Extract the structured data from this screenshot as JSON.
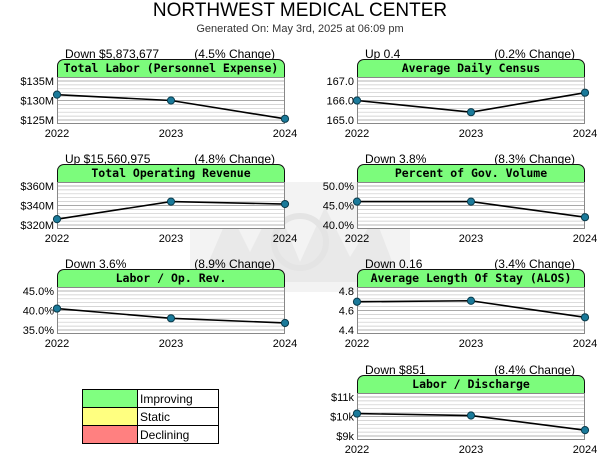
{
  "title": "NORTHWEST MEDICAL CENTER",
  "subtitle": "Generated On: May 3rd, 2025 at 06:09 pm",
  "legend": [
    {
      "label": "Improving",
      "color": "#80ff80"
    },
    {
      "label": "Static",
      "color": "#ffff80"
    },
    {
      "label": "Declining",
      "color": "#ff8080"
    }
  ],
  "colors": {
    "tab": "#7cfc7c",
    "line": "#000000",
    "marker": "#1a7a9a",
    "grid": "#c8c8c8"
  },
  "chart_data": [
    {
      "type": "line",
      "title": "Total Labor (Personnel Expense)",
      "change": "Down $5,873,677",
      "pct_change": "(4.5% Change)",
      "x": [
        "2022",
        "2023",
        "2024"
      ],
      "values": [
        131.5,
        130.0,
        125.3
      ],
      "ylim": [
        125,
        135
      ],
      "yticks": [
        125,
        130,
        135
      ],
      "ytick_labels": [
        "$125M",
        "$130M",
        "$135M"
      ]
    },
    {
      "type": "line",
      "title": "Average Daily Census",
      "change": "Up 0.4",
      "pct_change": "(0.2% Change)",
      "x": [
        "2022",
        "2023",
        "2024"
      ],
      "values": [
        166.0,
        165.4,
        166.4
      ],
      "ylim": [
        165,
        167
      ],
      "yticks": [
        165,
        166,
        167
      ],
      "ytick_labels": [
        "165.0",
        "166.0",
        "167.0"
      ]
    },
    {
      "type": "line",
      "title": "Total Operating Revenue",
      "change": "Up $15,560,975",
      "pct_change": "(4.8% Change)",
      "x": [
        "2022",
        "2023",
        "2024"
      ],
      "values": [
        326.0,
        344.0,
        341.5
      ],
      "ylim": [
        320,
        360
      ],
      "yticks": [
        320,
        340,
        360
      ],
      "ytick_labels": [
        "$320M",
        "$340M",
        "$360M"
      ]
    },
    {
      "type": "line",
      "title": "Percent of Gov. Volume",
      "change": "Down 3.8%",
      "pct_change": "(8.3% Change)",
      "x": [
        "2022",
        "2023",
        "2024"
      ],
      "values": [
        46.0,
        46.0,
        42.0
      ],
      "ylim": [
        40,
        50
      ],
      "yticks": [
        40,
        45,
        50
      ],
      "ytick_labels": [
        "40.0%",
        "45.0%",
        "50.0%"
      ]
    },
    {
      "type": "line",
      "title": "Labor / Op. Rev.",
      "change": "Down 3.6%",
      "pct_change": "(8.9% Change)",
      "x": [
        "2022",
        "2023",
        "2024"
      ],
      "values": [
        40.5,
        38.0,
        36.8
      ],
      "ylim": [
        35,
        45
      ],
      "yticks": [
        35,
        40,
        45
      ],
      "ytick_labels": [
        "35.0%",
        "40.0%",
        "45.0%"
      ]
    },
    {
      "type": "line",
      "title": "Average Length Of Stay (ALOS)",
      "change": "Down 0.16",
      "pct_change": "(3.4% Change)",
      "x": [
        "2022",
        "2023",
        "2024"
      ],
      "values": [
        4.69,
        4.7,
        4.53
      ],
      "ylim": [
        4.4,
        4.8
      ],
      "yticks": [
        4.4,
        4.6,
        4.8
      ],
      "ytick_labels": [
        "4.4",
        "4.6",
        "4.8"
      ]
    },
    {
      "type": "line",
      "title": "Labor / Discharge",
      "change": "Down $851",
      "pct_change": "(8.4% Change)",
      "x": [
        "2022",
        "2023",
        "2024"
      ],
      "values": [
        10.15,
        10.05,
        9.3
      ],
      "ylim": [
        9,
        11
      ],
      "yticks": [
        9,
        10,
        11
      ],
      "ytick_labels": [
        "$9k",
        "$10k",
        "$11k"
      ]
    }
  ]
}
